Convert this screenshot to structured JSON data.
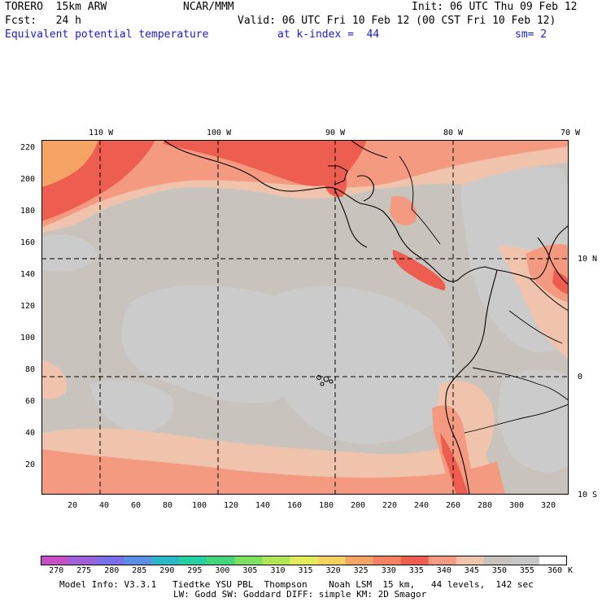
{
  "header": {
    "model": "TORERO  15km ARW",
    "center": "NCAR/MMM",
    "init": "Init: 06 UTC Thu 09 Feb 12",
    "fcst": "Fcst:   24 h",
    "valid": "Valid: 06 UTC Fri 10 Feb 12 (00 CST Fri 10 Feb 12)",
    "field": "Equivalent potential temperature",
    "level": "at k-index =  44",
    "smoothing": "sm= 2"
  },
  "map": {
    "lon_labels": [
      "110 W",
      "100 W",
      "90 W",
      "80 W",
      "70 W"
    ],
    "lat_labels": [
      "10 N",
      "0",
      "10 S"
    ],
    "y_ticks": [
      "220",
      "200",
      "180",
      "160",
      "140",
      "120",
      "100",
      "80",
      "60",
      "40",
      "20"
    ],
    "x_ticks": [
      "20",
      "40",
      "60",
      "80",
      "100",
      "120",
      "140",
      "160",
      "180",
      "200",
      "220",
      "240",
      "260",
      "280",
      "300",
      "320"
    ],
    "gridline_style": "dashed",
    "background_color": "#c9c3bd"
  },
  "colorbar": {
    "labels": [
      "270",
      "275",
      "280",
      "285",
      "290",
      "295",
      "300",
      "305",
      "310",
      "315",
      "320",
      "325",
      "330",
      "335",
      "340",
      "345",
      "350",
      "355",
      "360"
    ],
    "unit": "K",
    "colors": [
      "#c64fc8",
      "#a060d8",
      "#7c6ee8",
      "#5c8ee8",
      "#2ab8c8",
      "#26d0a0",
      "#44d67c",
      "#7ee060",
      "#b2e656",
      "#e2ec5a",
      "#f6d060",
      "#f6a466",
      "#f48260",
      "#ee5e50",
      "#f49a80",
      "#f0c4ac",
      "#c9c3bd",
      "#c8c8c8",
      "#ffffff"
    ]
  },
  "footer": {
    "line1": "Model Info: V3.3.1   Tiedtke YSU PBL  Thompson    Noah LSM  15 km,   44 levels,  142 sec",
    "line2": "LW: Godd SW: Goddard DIFF: simple KM: 2D Smagor"
  }
}
